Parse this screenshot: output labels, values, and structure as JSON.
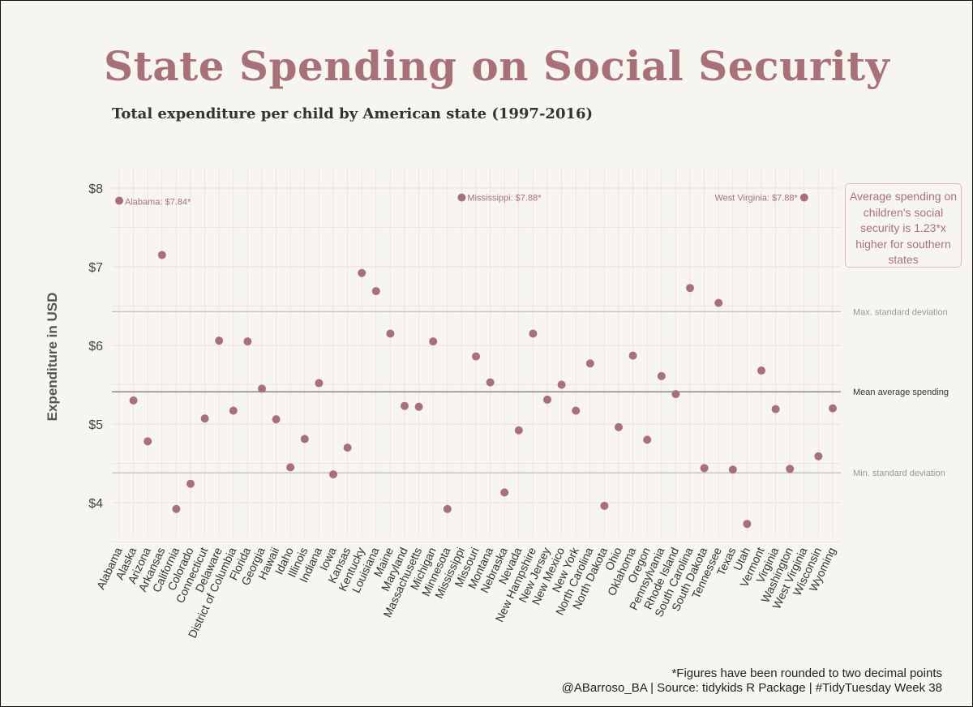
{
  "title": "State Spending on Social Security",
  "subtitle": "Total expenditure per child by American state (1997-2016)",
  "colors": {
    "point": "#a8717a",
    "title": "#a8717a",
    "grid": "#f0dcdc",
    "background": "#f7f5f0"
  },
  "annotation_box": {
    "text": "Average spending on children's social security is 1.23*x higher for southern states"
  },
  "footnotes": {
    "rounding": "*Figures have been rounded to two decimal points",
    "source": "@ABarroso_BA | Source: tidykids R Package | #TidyTuesday Week 38"
  },
  "chart_data": {
    "type": "scatter",
    "title": "State Spending on Social Security",
    "subtitle": "Total expenditure per child by American state (1997-2016)",
    "xlabel": "",
    "ylabel": "Expenditure in USD",
    "ylim": [
      3.55,
      8.2
    ],
    "yticks": [
      4,
      5,
      6,
      7,
      8
    ],
    "ytick_labels": [
      "$4",
      "$5",
      "$6",
      "$7",
      "$8"
    ],
    "grid": true,
    "categories": [
      "Alabama",
      "Alaska",
      "Arizona",
      "Arkansas",
      "California",
      "Colorado",
      "Connecticut",
      "Delaware",
      "District of Columbia",
      "Florida",
      "Georgia",
      "Hawaii",
      "Idaho",
      "Illinois",
      "Indiana",
      "Iowa",
      "Kansas",
      "Kentucky",
      "Louisiana",
      "Maine",
      "Maryland",
      "Massachusetts",
      "Michigan",
      "Minnesota",
      "Mississippi",
      "Missouri",
      "Montana",
      "Nebraska",
      "Nevada",
      "New Hampshire",
      "New Jersey",
      "New Mexico",
      "New York",
      "North Carolina",
      "North Dakota",
      "Ohio",
      "Oklahoma",
      "Oregon",
      "Pennsylvania",
      "Rhode Island",
      "South Carolina",
      "South Dakota",
      "Tennessee",
      "Texas",
      "Utah",
      "Vermont",
      "Virginia",
      "Washington",
      "West Virginia",
      "Wisconsin",
      "Wyoming"
    ],
    "values": [
      7.84,
      5.3,
      4.78,
      7.15,
      3.92,
      4.24,
      5.07,
      6.06,
      5.17,
      6.05,
      5.45,
      5.06,
      4.45,
      4.81,
      5.52,
      4.36,
      4.7,
      6.92,
      6.69,
      6.15,
      5.23,
      5.22,
      6.05,
      3.92,
      7.88,
      5.86,
      5.53,
      4.13,
      4.92,
      6.15,
      5.31,
      5.5,
      5.17,
      5.77,
      3.96,
      4.96,
      5.87,
      4.8,
      5.61,
      5.38,
      6.73,
      4.44,
      6.54,
      4.42,
      3.73,
      5.68,
      5.19,
      4.43,
      7.88,
      4.59,
      5.2
    ],
    "point_labels": [
      {
        "state": "Alabama",
        "text": "Alabama: $7.84*"
      },
      {
        "state": "Mississippi",
        "text": "Mississippi: $7.88*"
      },
      {
        "state": "West Virginia",
        "text": "West Virginia: $7.88*"
      }
    ],
    "reference_lines": [
      {
        "value": 6.43,
        "label": "Max. standard deviation"
      },
      {
        "value": 5.41,
        "label": "Mean average spending"
      },
      {
        "value": 4.38,
        "label": "Min. standard deviation"
      }
    ]
  }
}
